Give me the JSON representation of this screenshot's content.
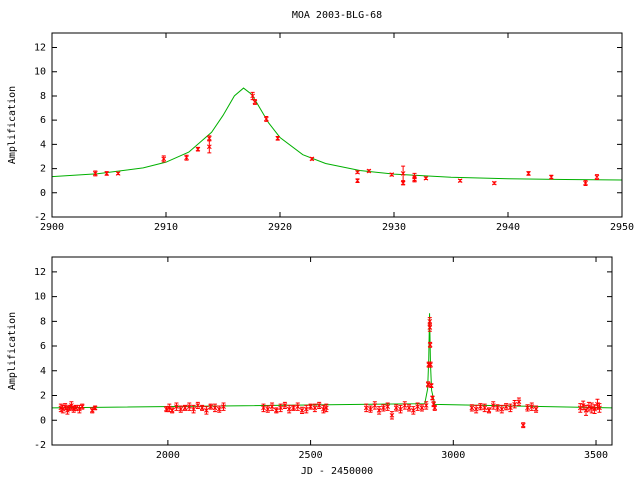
{
  "chart_data": [
    {
      "type": "scatter",
      "title": "MOA 2003-BLG-68",
      "ylabel": "Amplification",
      "xlim": [
        2900,
        2950
      ],
      "xticks": [
        2900,
        2910,
        2920,
        2930,
        2940,
        2950
      ],
      "ylim": [
        -2,
        13.2
      ],
      "yticks": [
        -2,
        0,
        2,
        4,
        6,
        8,
        10,
        12
      ],
      "points": {
        "color": "#ff0000",
        "x": [
          2903.8,
          2904.8,
          2905.8,
          2909.8,
          2911.8,
          2912.8,
          2913.8,
          2913.8,
          2917.6,
          2917.8,
          2918.8,
          2919.8,
          2922.8,
          2926.8,
          2926.8,
          2927.8,
          2929.8,
          2930.8,
          2930.8,
          2931.8,
          2931.8,
          2932.8,
          2935.8,
          2938.8,
          2941.8,
          2943.8,
          2946.8,
          2947.8
        ],
        "values": [
          1.6,
          1.6,
          1.6,
          2.8,
          2.9,
          3.6,
          4.5,
          3.8,
          8.0,
          7.5,
          6.1,
          4.5,
          2.8,
          1.7,
          1.0,
          1.8,
          1.5,
          1.6,
          0.8,
          1.3,
          1.1,
          1.2,
          1.0,
          0.8,
          1.6,
          1.3,
          0.8,
          1.3
        ],
        "errors": [
          0.2,
          0.15,
          0.1,
          0.25,
          0.2,
          0.15,
          0.2,
          0.5,
          0.3,
          0.2,
          0.2,
          0.15,
          0.1,
          0.1,
          0.15,
          0.1,
          0.1,
          0.6,
          0.15,
          0.3,
          0.2,
          0.1,
          0.1,
          0.1,
          0.15,
          0.15,
          0.2,
          0.2
        ]
      },
      "model": {
        "color": "#00b000",
        "x": [
          2900,
          2904,
          2908,
          2910,
          2912,
          2914,
          2915,
          2916,
          2916.8,
          2917.5,
          2918,
          2919,
          2920,
          2922,
          2924,
          2927,
          2930,
          2935,
          2940,
          2945,
          2950
        ],
        "values": [
          1.34,
          1.57,
          2.06,
          2.53,
          3.36,
          5.0,
          6.39,
          8.01,
          8.65,
          8.14,
          7.38,
          5.78,
          4.57,
          3.15,
          2.42,
          1.84,
          1.54,
          1.28,
          1.16,
          1.1,
          1.06
        ]
      }
    },
    {
      "type": "scatter",
      "ylabel": "Amplification",
      "xlabel": "JD - 2450000",
      "xlim": [
        1594,
        3556
      ],
      "xticks": [
        2000,
        2500,
        3000,
        3500
      ],
      "ylim": [
        -2,
        13.2
      ],
      "yticks": [
        -2,
        0,
        2,
        4,
        6,
        8,
        10,
        12
      ],
      "points": {
        "color": "#ff0000",
        "x": [
          1625,
          1632,
          1640,
          1648,
          1655,
          1662,
          1670,
          1678,
          1690,
          1700,
          1735,
          1745,
          1995,
          2005,
          2015,
          2030,
          2045,
          2060,
          2075,
          2090,
          2105,
          2120,
          2135,
          2150,
          2165,
          2180,
          2195,
          2335,
          2350,
          2365,
          2380,
          2395,
          2410,
          2425,
          2440,
          2455,
          2470,
          2485,
          2500,
          2515,
          2530,
          2545,
          2555,
          2695,
          2710,
          2725,
          2740,
          2755,
          2770,
          2785,
          2800,
          2815,
          2830,
          2845,
          2860,
          2875,
          2890,
          2905,
          2912,
          2914,
          2917.6,
          2917.8,
          2918.8,
          2920,
          2923,
          2927,
          2931,
          2935,
          3065,
          3080,
          3095,
          3110,
          3125,
          3140,
          3155,
          3170,
          3185,
          3200,
          3215,
          3230,
          3245,
          3260,
          3275,
          3290,
          3445,
          3455,
          3465,
          3475,
          3485,
          3495,
          3505,
          3512
        ],
        "values": [
          1.0,
          0.9,
          1.1,
          0.8,
          1.0,
          1.2,
          0.9,
          1.0,
          0.9,
          1.1,
          0.8,
          1.0,
          0.9,
          1.0,
          0.8,
          1.1,
          0.9,
          1.0,
          1.1,
          0.9,
          1.2,
          1.0,
          0.8,
          1.1,
          1.0,
          0.9,
          1.1,
          1.0,
          0.9,
          1.1,
          0.8,
          1.0,
          1.2,
          0.9,
          1.0,
          1.1,
          0.8,
          0.9,
          1.1,
          1.0,
          1.2,
          0.9,
          1.0,
          1.0,
          0.9,
          1.2,
          0.8,
          1.0,
          1.1,
          0.4,
          1.0,
          0.9,
          1.2,
          1.0,
          0.8,
          1.1,
          1.0,
          1.2,
          2.9,
          4.5,
          8.0,
          7.5,
          6.1,
          4.5,
          2.8,
          1.8,
          1.3,
          1.0,
          1.0,
          0.9,
          1.1,
          1.0,
          0.8,
          1.2,
          1.0,
          0.9,
          1.1,
          1.0,
          1.3,
          1.5,
          -0.4,
          1.0,
          1.1,
          0.9,
          1.0,
          1.2,
          0.8,
          1.1,
          1.0,
          0.9,
          1.3,
          1.0
        ],
        "errors": [
          0.3,
          0.3,
          0.25,
          0.3,
          0.2,
          0.3,
          0.25,
          0.2,
          0.3,
          0.2,
          0.2,
          0.15,
          0.2,
          0.3,
          0.2,
          0.3,
          0.25,
          0.2,
          0.3,
          0.3,
          0.25,
          0.2,
          0.3,
          0.2,
          0.3,
          0.25,
          0.3,
          0.3,
          0.25,
          0.3,
          0.2,
          0.3,
          0.25,
          0.3,
          0.2,
          0.3,
          0.25,
          0.3,
          0.2,
          0.3,
          0.25,
          0.3,
          0.3,
          0.3,
          0.25,
          0.3,
          0.3,
          0.25,
          0.3,
          0.3,
          0.25,
          0.3,
          0.3,
          0.25,
          0.3,
          0.3,
          0.25,
          0.3,
          0.2,
          0.2,
          0.3,
          0.3,
          0.2,
          0.2,
          0.15,
          0.15,
          0.2,
          0.2,
          0.25,
          0.3,
          0.25,
          0.3,
          0.2,
          0.3,
          0.25,
          0.3,
          0.25,
          0.3,
          0.3,
          0.3,
          0.2,
          0.25,
          0.3,
          0.25,
          0.35,
          0.35,
          0.4,
          0.35,
          0.4,
          0.35,
          0.4,
          0.35
        ]
      },
      "model": {
        "color": "#00b000",
        "x": [
          1594,
          2900,
          2910,
          2914,
          2916.8,
          2920,
          2924,
          2935,
          3556
        ],
        "values": [
          1.0,
          1.34,
          2.53,
          5.0,
          8.65,
          4.57,
          2.42,
          1.28,
          1.0
        ]
      }
    }
  ]
}
